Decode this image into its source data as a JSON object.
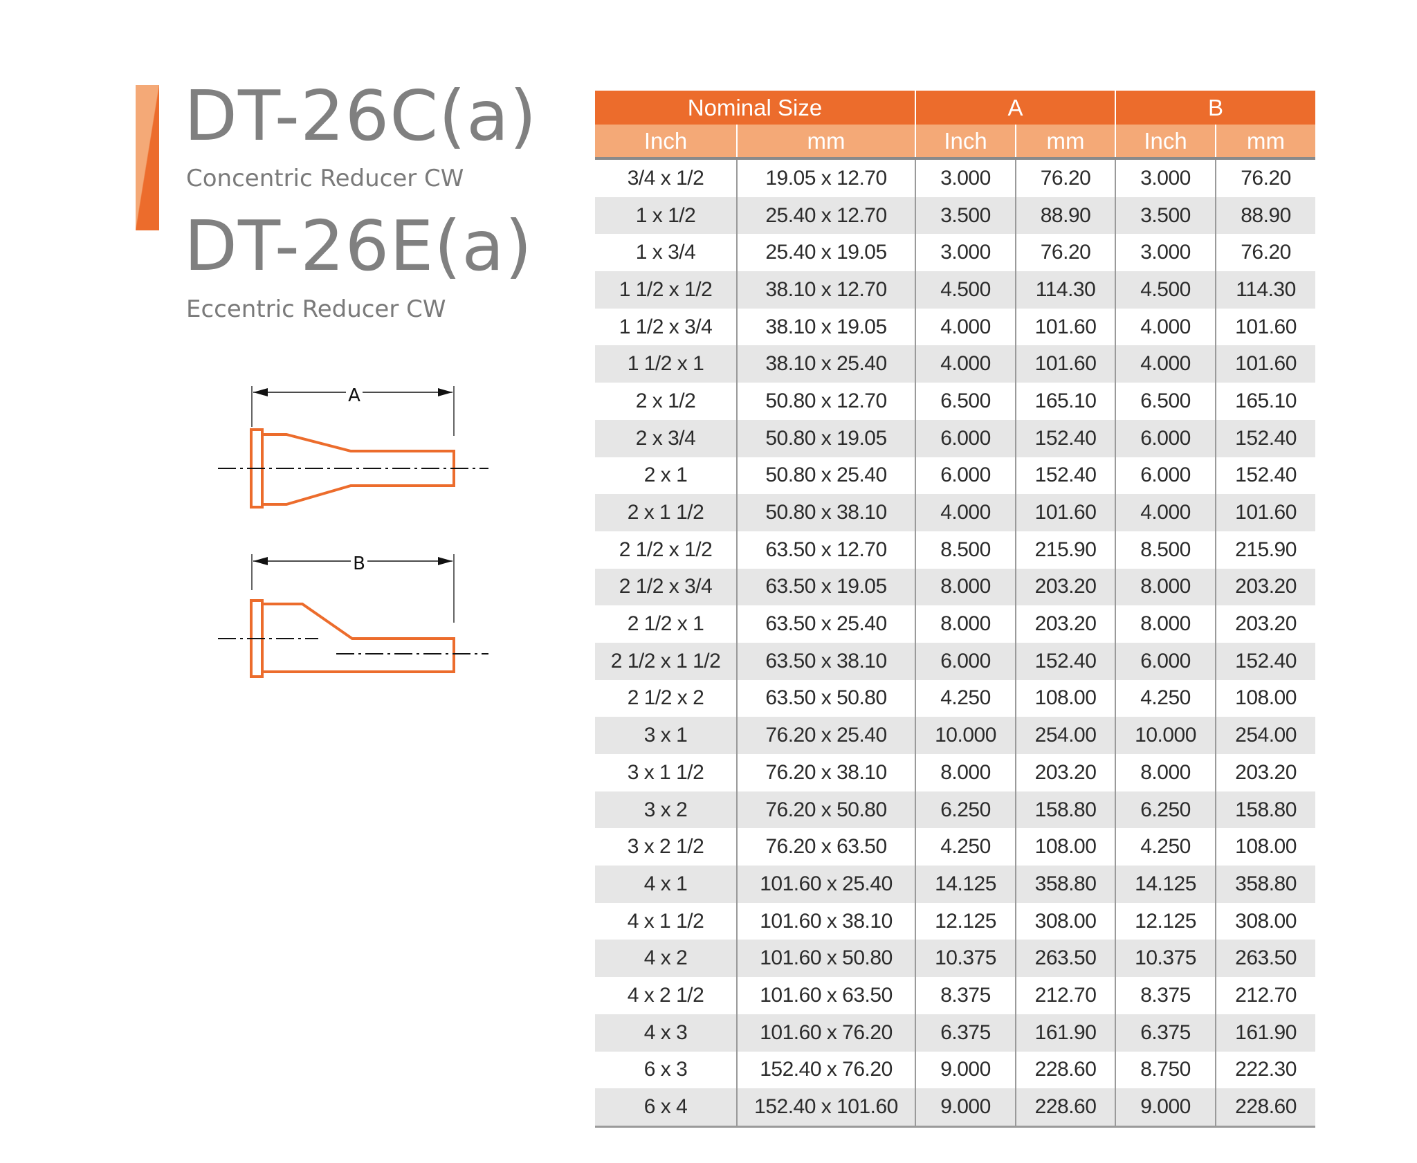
{
  "products": [
    {
      "code": "DT-26C(a)",
      "name": "Concentric Reducer CW"
    },
    {
      "code": "DT-26E(a)",
      "name": "Eccentric Reducer CW"
    }
  ],
  "diagram": {
    "label_a": "A",
    "label_b": "B",
    "color": "#EC6C2C"
  },
  "colors": {
    "header": "#EC6C2C",
    "subheader": "#F4A977",
    "row_alt": "#E6E6E6"
  },
  "table": {
    "groups": [
      "Nominal Size",
      "A",
      "B"
    ],
    "columns": [
      "Inch",
      "mm",
      "Inch",
      "mm",
      "Inch",
      "mm"
    ],
    "rows": [
      [
        "3/4 x 1/2",
        "19.05 x 12.70",
        "3.000",
        "76.20",
        "3.000",
        "76.20"
      ],
      [
        "1 x 1/2",
        "25.40 x 12.70",
        "3.500",
        "88.90",
        "3.500",
        "88.90"
      ],
      [
        "1 x 3/4",
        "25.40 x 19.05",
        "3.000",
        "76.20",
        "3.000",
        "76.20"
      ],
      [
        "1 1/2 x 1/2",
        "38.10 x 12.70",
        "4.500",
        "114.30",
        "4.500",
        "114.30"
      ],
      [
        "1 1/2 x 3/4",
        "38.10 x 19.05",
        "4.000",
        "101.60",
        "4.000",
        "101.60"
      ],
      [
        "1 1/2 x 1",
        "38.10 x 25.40",
        "4.000",
        "101.60",
        "4.000",
        "101.60"
      ],
      [
        "2 x 1/2",
        "50.80 x 12.70",
        "6.500",
        "165.10",
        "6.500",
        "165.10"
      ],
      [
        "2 x 3/4",
        "50.80 x 19.05",
        "6.000",
        "152.40",
        "6.000",
        "152.40"
      ],
      [
        "2  x 1",
        "50.80 x 25.40",
        "6.000",
        "152.40",
        "6.000",
        "152.40"
      ],
      [
        "2  x 1 1/2",
        "50.80 x 38.10",
        "4.000",
        "101.60",
        "4.000",
        "101.60"
      ],
      [
        "2 1/2 x 1/2",
        "63.50 x 12.70",
        "8.500",
        "215.90",
        "8.500",
        "215.90"
      ],
      [
        "2 1/2 x 3/4",
        "63.50 x 19.05",
        "8.000",
        "203.20",
        "8.000",
        "203.20"
      ],
      [
        "2 1/2 x 1",
        "63.50 x 25.40",
        "8.000",
        "203.20",
        "8.000",
        "203.20"
      ],
      [
        "2 1/2 x 1 1/2",
        "63.50 x 38.10",
        "6.000",
        "152.40",
        "6.000",
        "152.40"
      ],
      [
        "2 1/2 x 2",
        "63.50 x 50.80",
        "4.250",
        "108.00",
        "4.250",
        "108.00"
      ],
      [
        "3 x 1",
        "76.20 x 25.40",
        "10.000",
        "254.00",
        "10.000",
        "254.00"
      ],
      [
        "3 x 1 1/2",
        "76.20 x 38.10",
        "8.000",
        "203.20",
        "8.000",
        "203.20"
      ],
      [
        "3 x 2",
        "76.20 x 50.80",
        "6.250",
        "158.80",
        "6.250",
        "158.80"
      ],
      [
        "3 x 2 1/2",
        "76.20 x 63.50",
        "4.250",
        "108.00",
        "4.250",
        "108.00"
      ],
      [
        "4 x 1",
        "101.60 x 25.40",
        "14.125",
        "358.80",
        "14.125",
        "358.80"
      ],
      [
        "4 x 1 1/2",
        "101.60 x 38.10",
        "12.125",
        "308.00",
        "12.125",
        "308.00"
      ],
      [
        "4 x 2",
        "101.60 x 50.80",
        "10.375",
        "263.50",
        "10.375",
        "263.50"
      ],
      [
        "4 x 2 1/2",
        "101.60 x 63.50",
        "8.375",
        "212.70",
        "8.375",
        "212.70"
      ],
      [
        "4 x 3",
        "101.60 x 76.20",
        "6.375",
        "161.90",
        "6.375",
        "161.90"
      ],
      [
        "6 x 3",
        "152.40 x 76.20",
        "9.000",
        "228.60",
        "8.750",
        "222.30"
      ],
      [
        "6 x 4",
        "152.40 x 101.60",
        "9.000",
        "228.60",
        "9.000",
        "228.60"
      ]
    ]
  }
}
